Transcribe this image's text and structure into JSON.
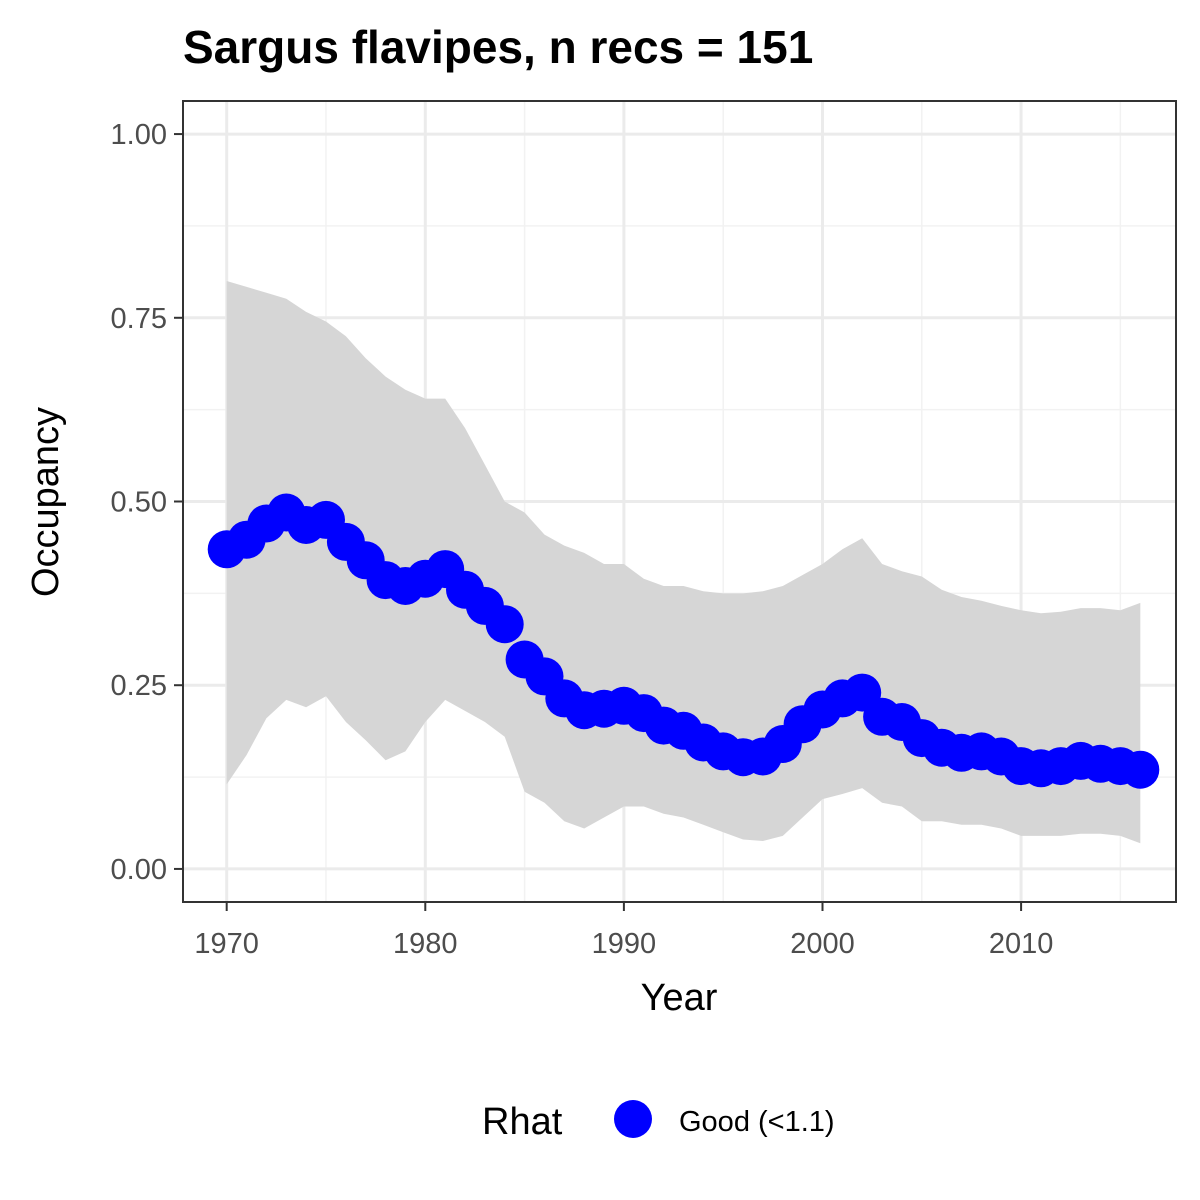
{
  "chart_data": {
    "type": "line",
    "title": "Sargus flavipes, n recs = 151",
    "xlabel": "Year",
    "ylabel": "Occupancy",
    "xlim": [
      1967.8,
      2017.8
    ],
    "ylim": [
      -0.045,
      1.045
    ],
    "x_ticks": [
      1970,
      1980,
      1990,
      2000,
      2010
    ],
    "x_tick_labels": [
      "1970",
      "1980",
      "1990",
      "2000",
      "2010"
    ],
    "y_ticks": [
      0,
      0.25,
      0.5,
      0.75,
      1
    ],
    "y_tick_labels": [
      "0.00",
      "0.25",
      "0.50",
      "0.75",
      "1.00"
    ],
    "grid": true,
    "legend": {
      "title": "Rhat",
      "position": "bottom",
      "entries": [
        "Good (<1.1)"
      ]
    },
    "colors": {
      "point": "#0000ff",
      "ribbon": "#d6d6d6",
      "grid_major": "#ebebeb",
      "grid_minor": "#f2f2f2",
      "panel_border": "#333333"
    },
    "x": [
      1970,
      1971,
      1972,
      1973,
      1974,
      1975,
      1976,
      1977,
      1978,
      1979,
      1980,
      1981,
      1982,
      1983,
      1984,
      1985,
      1986,
      1987,
      1988,
      1989,
      1990,
      1991,
      1992,
      1993,
      1994,
      1995,
      1996,
      1997,
      1998,
      1999,
      2000,
      2001,
      2002,
      2003,
      2004,
      2005,
      2006,
      2007,
      2008,
      2009,
      2010,
      2011,
      2012,
      2013,
      2014,
      2015,
      2016
    ],
    "series": [
      {
        "values": [
          0.435,
          0.448,
          0.47,
          0.485,
          0.468,
          0.475,
          0.445,
          0.42,
          0.393,
          0.385,
          0.395,
          0.408,
          0.38,
          0.358,
          0.333,
          0.285,
          0.262,
          0.232,
          0.216,
          0.218,
          0.222,
          0.212,
          0.195,
          0.188,
          0.172,
          0.16,
          0.152,
          0.153,
          0.17,
          0.197,
          0.217,
          0.232,
          0.24,
          0.207,
          0.2,
          0.178,
          0.165,
          0.158,
          0.16,
          0.153,
          0.14,
          0.137,
          0.14,
          0.147,
          0.143,
          0.14,
          0.135
        ],
        "lower": [
          0.115,
          0.155,
          0.205,
          0.23,
          0.22,
          0.235,
          0.2,
          0.175,
          0.148,
          0.16,
          0.2,
          0.23,
          0.215,
          0.2,
          0.18,
          0.105,
          0.09,
          0.065,
          0.055,
          0.07,
          0.085,
          0.085,
          0.075,
          0.07,
          0.06,
          0.05,
          0.04,
          0.038,
          0.045,
          0.07,
          0.095,
          0.102,
          0.11,
          0.09,
          0.085,
          0.065,
          0.065,
          0.06,
          0.06,
          0.055,
          0.045,
          0.045,
          0.045,
          0.048,
          0.048,
          0.045,
          0.035
        ],
        "upper": [
          0.8,
          0.792,
          0.784,
          0.776,
          0.758,
          0.745,
          0.725,
          0.695,
          0.67,
          0.652,
          0.64,
          0.64,
          0.6,
          0.55,
          0.5,
          0.485,
          0.455,
          0.44,
          0.43,
          0.415,
          0.415,
          0.395,
          0.385,
          0.385,
          0.378,
          0.375,
          0.375,
          0.378,
          0.385,
          0.4,
          0.415,
          0.435,
          0.45,
          0.415,
          0.405,
          0.398,
          0.38,
          0.37,
          0.365,
          0.358,
          0.352,
          0.348,
          0.35,
          0.355,
          0.355,
          0.352,
          0.362
        ]
      }
    ]
  }
}
